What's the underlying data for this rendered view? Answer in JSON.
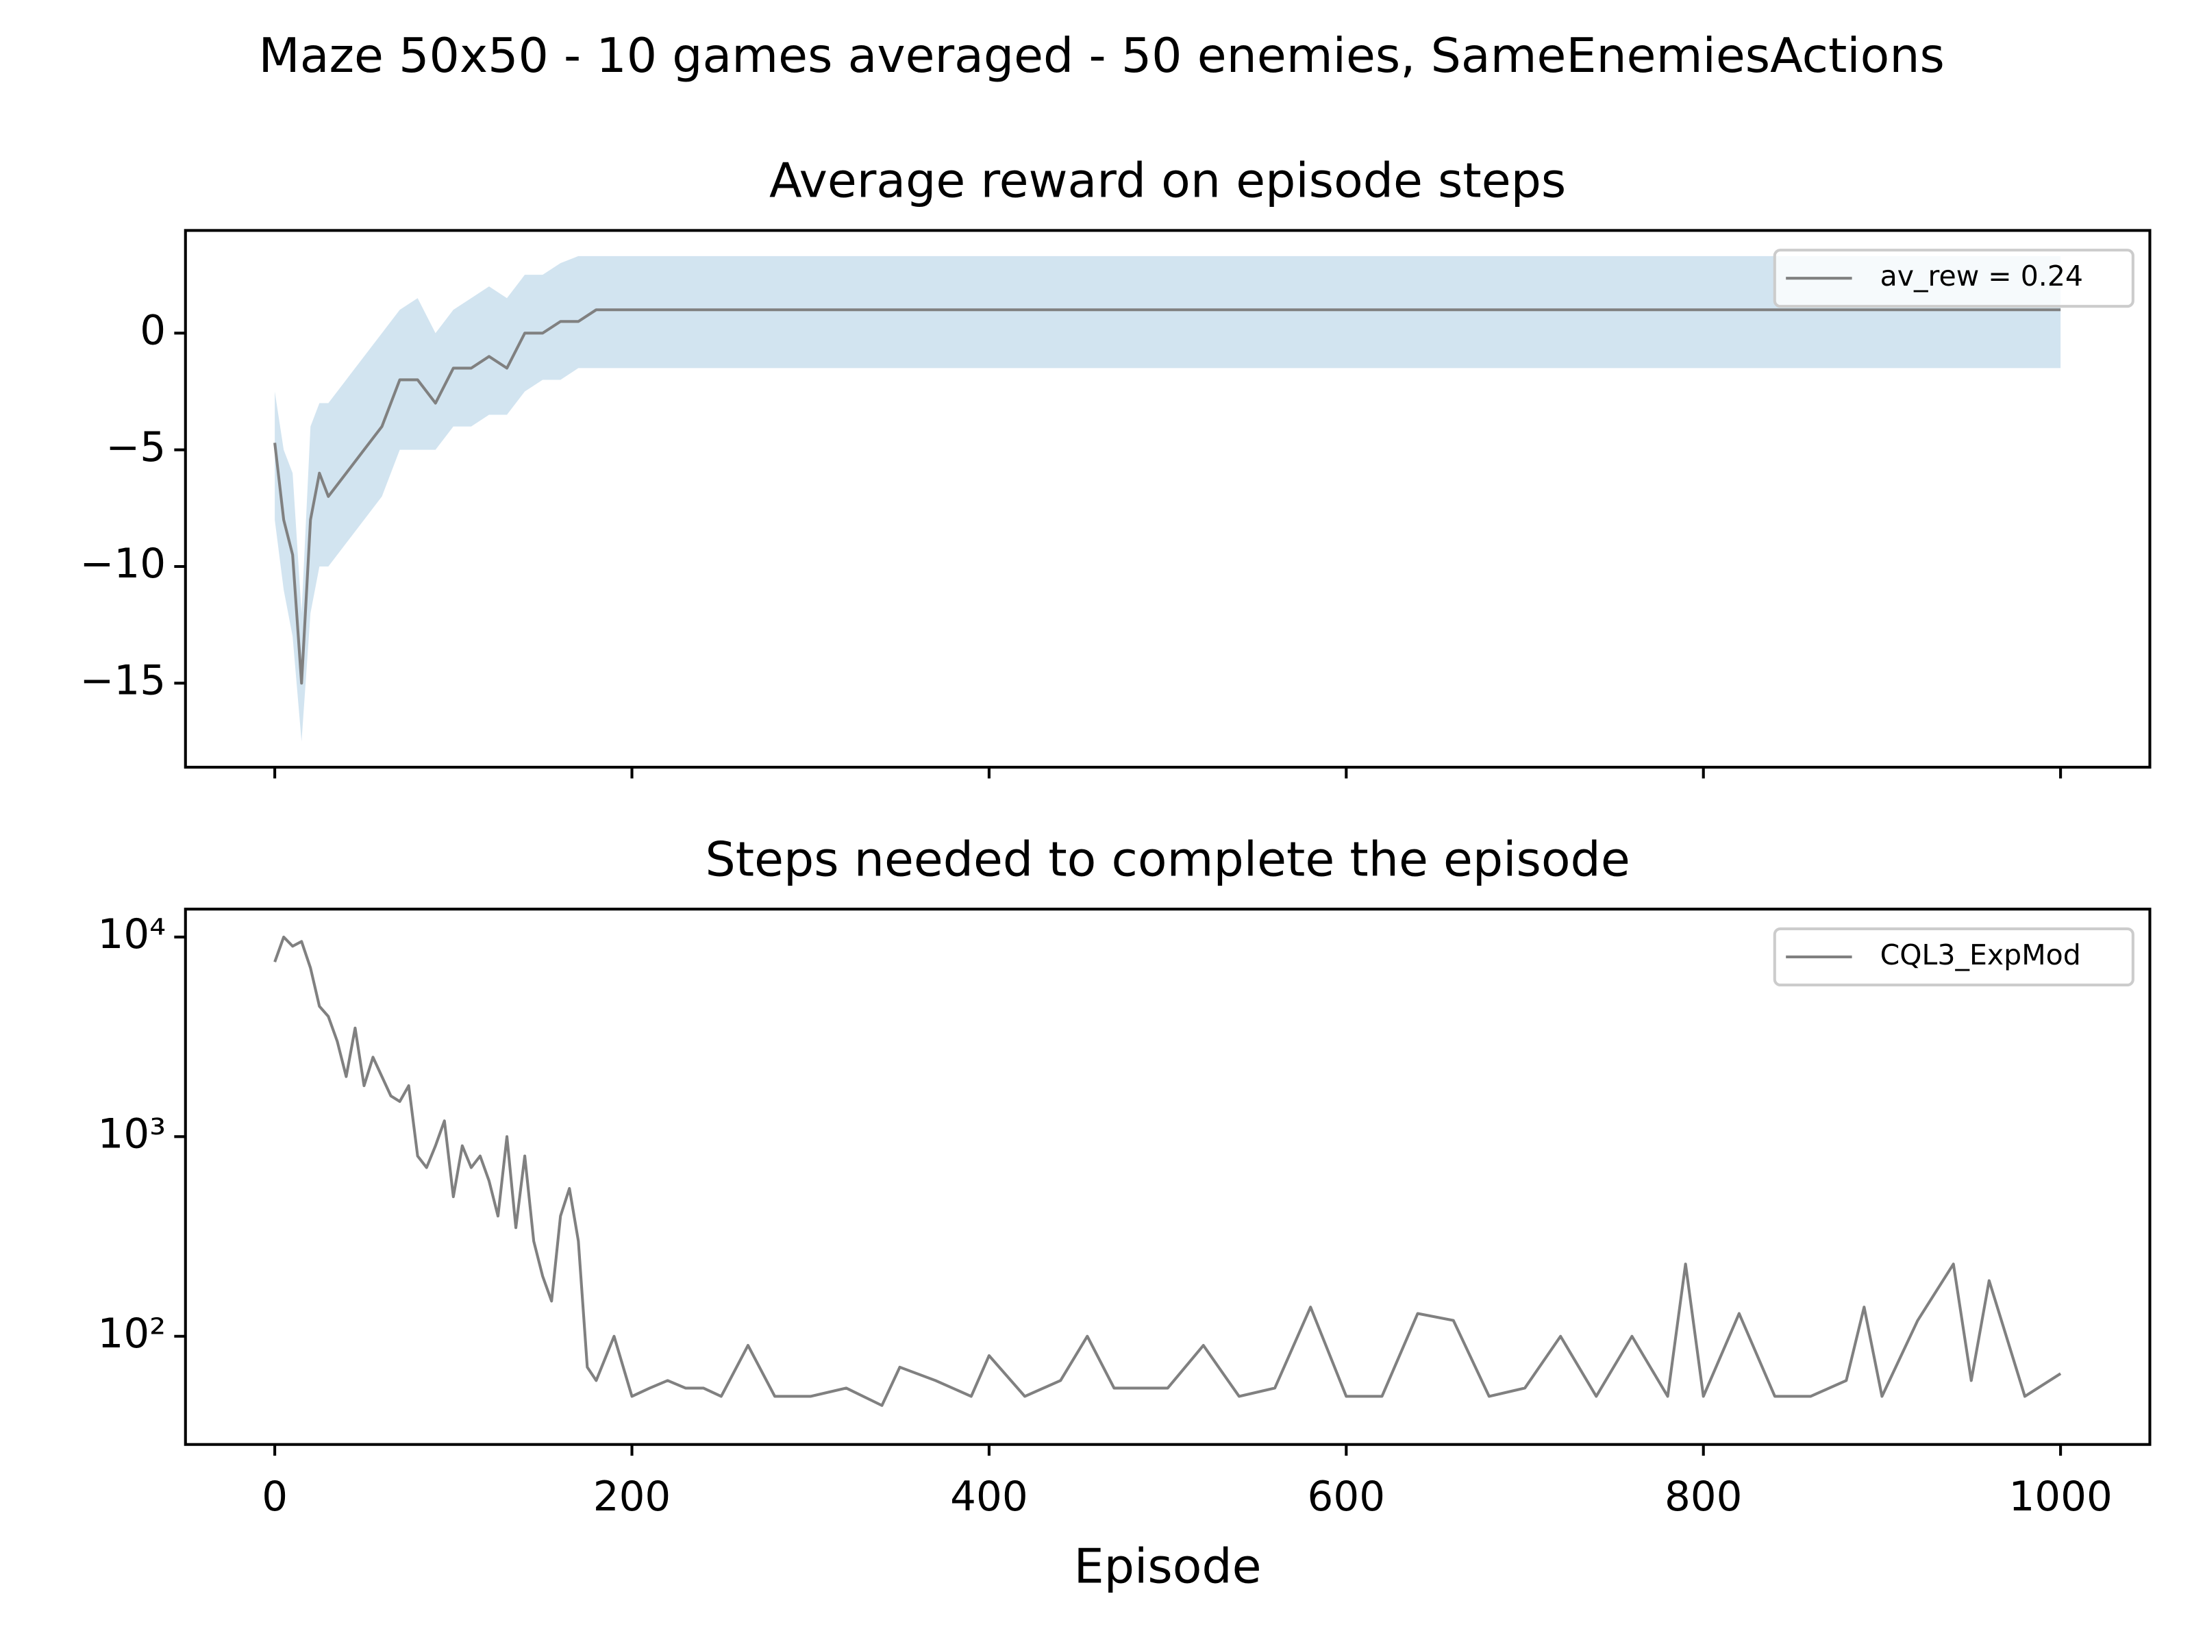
{
  "title": "Maze 50x50 - 10 games averaged - 50 enemies, SameEnemiesActions",
  "chart_data": [
    {
      "type": "line",
      "title": "Average reward on episode steps",
      "x": [
        0,
        5,
        10,
        15,
        20,
        25,
        30,
        40,
        50,
        60,
        70,
        80,
        90,
        100,
        110,
        120,
        130,
        140,
        150,
        160,
        170,
        180,
        190,
        200,
        250,
        300,
        350,
        400,
        450,
        500,
        550,
        600,
        650,
        700,
        750,
        800,
        850,
        900,
        950,
        1000
      ],
      "series": [
        {
          "name": "av_rew = 0.24",
          "color": "#808080",
          "values": [
            -4.7,
            -8,
            -9.5,
            -15,
            -8,
            -6,
            -7,
            -6,
            -5,
            -4,
            -2,
            -2,
            -3,
            -1.5,
            -1.5,
            -1,
            -1.5,
            0,
            0,
            0.5,
            0.5,
            1,
            1,
            1,
            1,
            1,
            1,
            1,
            1,
            1,
            1,
            1,
            1,
            1,
            1,
            1,
            1,
            1,
            1,
            1
          ]
        }
      ],
      "band": {
        "color": "#1f77b4",
        "lower": [
          -8,
          -11,
          -13,
          -17.5,
          -12,
          -10,
          -10,
          -9,
          -8,
          -7,
          -5,
          -5,
          -5,
          -4,
          -4,
          -3.5,
          -3.5,
          -2.5,
          -2,
          -2,
          -1.5,
          -1.5,
          -1.5,
          -1.5,
          -1.5,
          -1.5,
          -1.5,
          -1.5,
          -1.5,
          -1.5,
          -1.5,
          -1.5,
          -1.5,
          -1.5,
          -1.5,
          -1.5,
          -1.5,
          -1.5,
          -1.5,
          -1.5
        ],
        "upper": [
          -2.5,
          -5,
          -6,
          -12,
          -4,
          -3,
          -3,
          -2,
          -1,
          0,
          1,
          1.5,
          0,
          1,
          1.5,
          2,
          1.5,
          2.5,
          2.5,
          3,
          3.3,
          3.3,
          3.3,
          3.3,
          3.3,
          3.3,
          3.3,
          3.3,
          3.3,
          3.3,
          3.3,
          3.3,
          3.3,
          3.3,
          3.3,
          3.3,
          3.3,
          3.3,
          3.3,
          3.3
        ]
      },
      "xlim": [
        -50,
        1050
      ],
      "ylim": [
        -18.6,
        4.4
      ],
      "xticks": [
        0,
        200,
        400,
        600,
        800,
        1000
      ],
      "xtick_labels": false,
      "yticks": [
        {
          "value": -15,
          "label": "−15"
        },
        {
          "value": -10,
          "label": "−10"
        },
        {
          "value": -5,
          "label": "−5"
        },
        0
      ],
      "legend": "upper right",
      "log_y": false
    },
    {
      "type": "line",
      "title": "Steps needed to complete the episode",
      "xlabel": "Episode",
      "x": [
        0,
        5,
        10,
        15,
        20,
        25,
        30,
        35,
        40,
        45,
        50,
        55,
        60,
        65,
        70,
        75,
        80,
        85,
        90,
        95,
        100,
        105,
        110,
        115,
        120,
        125,
        130,
        135,
        140,
        145,
        150,
        155,
        160,
        165,
        170,
        175,
        180,
        190,
        200,
        210,
        220,
        230,
        240,
        250,
        265,
        280,
        300,
        320,
        340,
        350,
        370,
        390,
        400,
        420,
        440,
        455,
        470,
        500,
        520,
        540,
        560,
        580,
        600,
        620,
        640,
        660,
        680,
        700,
        720,
        740,
        760,
        780,
        790,
        800,
        820,
        840,
        860,
        880,
        890,
        900,
        920,
        940,
        950,
        960,
        980,
        1000
      ],
      "series": [
        {
          "name": "CQL3_ExpMod",
          "color": "#808080",
          "values": [
            7500,
            10000,
            9000,
            9500,
            7000,
            4500,
            4000,
            3000,
            2000,
            3500,
            1800,
            2500,
            2000,
            1600,
            1500,
            1800,
            800,
            700,
            900,
            1200,
            500,
            900,
            700,
            800,
            600,
            400,
            1000,
            350,
            800,
            300,
            200,
            150,
            400,
            550,
            300,
            70,
            60,
            100,
            50,
            55,
            60,
            55,
            55,
            50,
            90,
            50,
            50,
            55,
            45,
            70,
            60,
            50,
            80,
            50,
            60,
            100,
            55,
            55,
            90,
            50,
            55,
            140,
            50,
            50,
            130,
            120,
            50,
            55,
            100,
            50,
            100,
            50,
            230,
            50,
            130,
            50,
            50,
            60,
            140,
            50,
            120,
            230,
            60,
            190,
            50,
            65
          ]
        }
      ],
      "xlim": [
        -50,
        1050
      ],
      "ylim": [
        28.7,
        13800
      ],
      "xticks": [
        0,
        200,
        400,
        600,
        800,
        1000
      ],
      "xtick_labels": true,
      "yticks": [
        {
          "value": 100,
          "label": "10²"
        },
        {
          "value": 1000,
          "label": "10³"
        },
        {
          "value": 10000,
          "label": "10⁴"
        }
      ],
      "legend": "upper right",
      "log_y": true
    }
  ]
}
